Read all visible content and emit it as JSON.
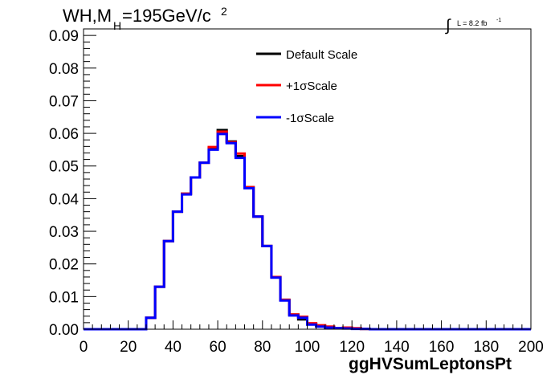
{
  "chart_data": {
    "type": "line",
    "title_main": "WH,M",
    "title_sub": "H",
    "title_rest": "=195GeV/c",
    "title_sup": "2",
    "lumi_label": "L = 8.2 fb",
    "lumi_sup": "-1",
    "lumi_integral": "∫",
    "xlabel": "ggHVSumLeptonsPt",
    "ylabel": "",
    "xlim": [
      0,
      200
    ],
    "ylim": [
      0,
      0.092
    ],
    "bin_width": 4,
    "x_ticks": [
      "0",
      "20",
      "40",
      "60",
      "80",
      "100",
      "120",
      "140",
      "160",
      "180",
      "200"
    ],
    "y_ticks": [
      "0.00",
      "0.01",
      "0.02",
      "0.03",
      "0.04",
      "0.05",
      "0.06",
      "0.07",
      "0.08",
      "0.09"
    ],
    "grid": false,
    "legend_position": "top-center",
    "bin_edges": [
      0,
      4,
      8,
      12,
      16,
      20,
      24,
      28,
      32,
      36,
      40,
      44,
      48,
      52,
      56,
      60,
      64,
      68,
      72,
      76,
      80,
      84,
      88,
      92,
      96,
      100,
      104,
      108,
      112,
      116,
      120,
      124,
      128,
      132,
      136,
      140,
      144,
      148,
      152,
      156,
      160,
      164,
      168,
      172,
      176,
      180,
      184,
      188,
      192,
      196,
      200
    ],
    "series": [
      {
        "name": "Default Scale",
        "color": "#000000",
        "values": [
          0,
          0,
          0,
          0,
          0,
          0,
          0,
          0.0035,
          0.013,
          0.027,
          0.036,
          0.0415,
          0.0465,
          0.051,
          0.0555,
          0.061,
          0.0575,
          0.053,
          0.0435,
          0.0345,
          0.0255,
          0.016,
          0.009,
          0.0045,
          0.003,
          0.0015,
          0.001,
          0.0006,
          0.0003,
          0.0003,
          0.0002,
          0.0001,
          0,
          0,
          0,
          0,
          0,
          0,
          0,
          0,
          0,
          0,
          0,
          0,
          0,
          0,
          0,
          0,
          0,
          0
        ]
      },
      {
        "name": "+1σScale",
        "color": "#ff0000",
        "values": [
          0,
          0,
          0,
          0,
          0,
          0,
          0,
          0.0035,
          0.013,
          0.027,
          0.036,
          0.0415,
          0.0465,
          0.051,
          0.0558,
          0.0605,
          0.0573,
          0.0538,
          0.0435,
          0.0345,
          0.0255,
          0.016,
          0.009,
          0.0045,
          0.0038,
          0.0018,
          0.0012,
          0.0008,
          0.0003,
          0.0005,
          0.0003,
          0.0001,
          0,
          0,
          0,
          0,
          0,
          0,
          0,
          0,
          0,
          0,
          0,
          0,
          0,
          0,
          0,
          0,
          0,
          0
        ]
      },
      {
        "name": "-1σScale",
        "color": "#0000ff",
        "values": [
          0,
          0,
          0,
          0,
          0,
          0,
          0,
          0.0035,
          0.013,
          0.027,
          0.036,
          0.0413,
          0.0465,
          0.051,
          0.055,
          0.0598,
          0.057,
          0.0525,
          0.0432,
          0.0345,
          0.0255,
          0.0158,
          0.0088,
          0.0042,
          0.0035,
          0.0014,
          0.0008,
          0.0005,
          0.0003,
          0.0002,
          0.0001,
          0.0001,
          0,
          0,
          0,
          0,
          0,
          0,
          0,
          0,
          0,
          0,
          0,
          0,
          0,
          0,
          0,
          0,
          0,
          0
        ]
      }
    ]
  }
}
